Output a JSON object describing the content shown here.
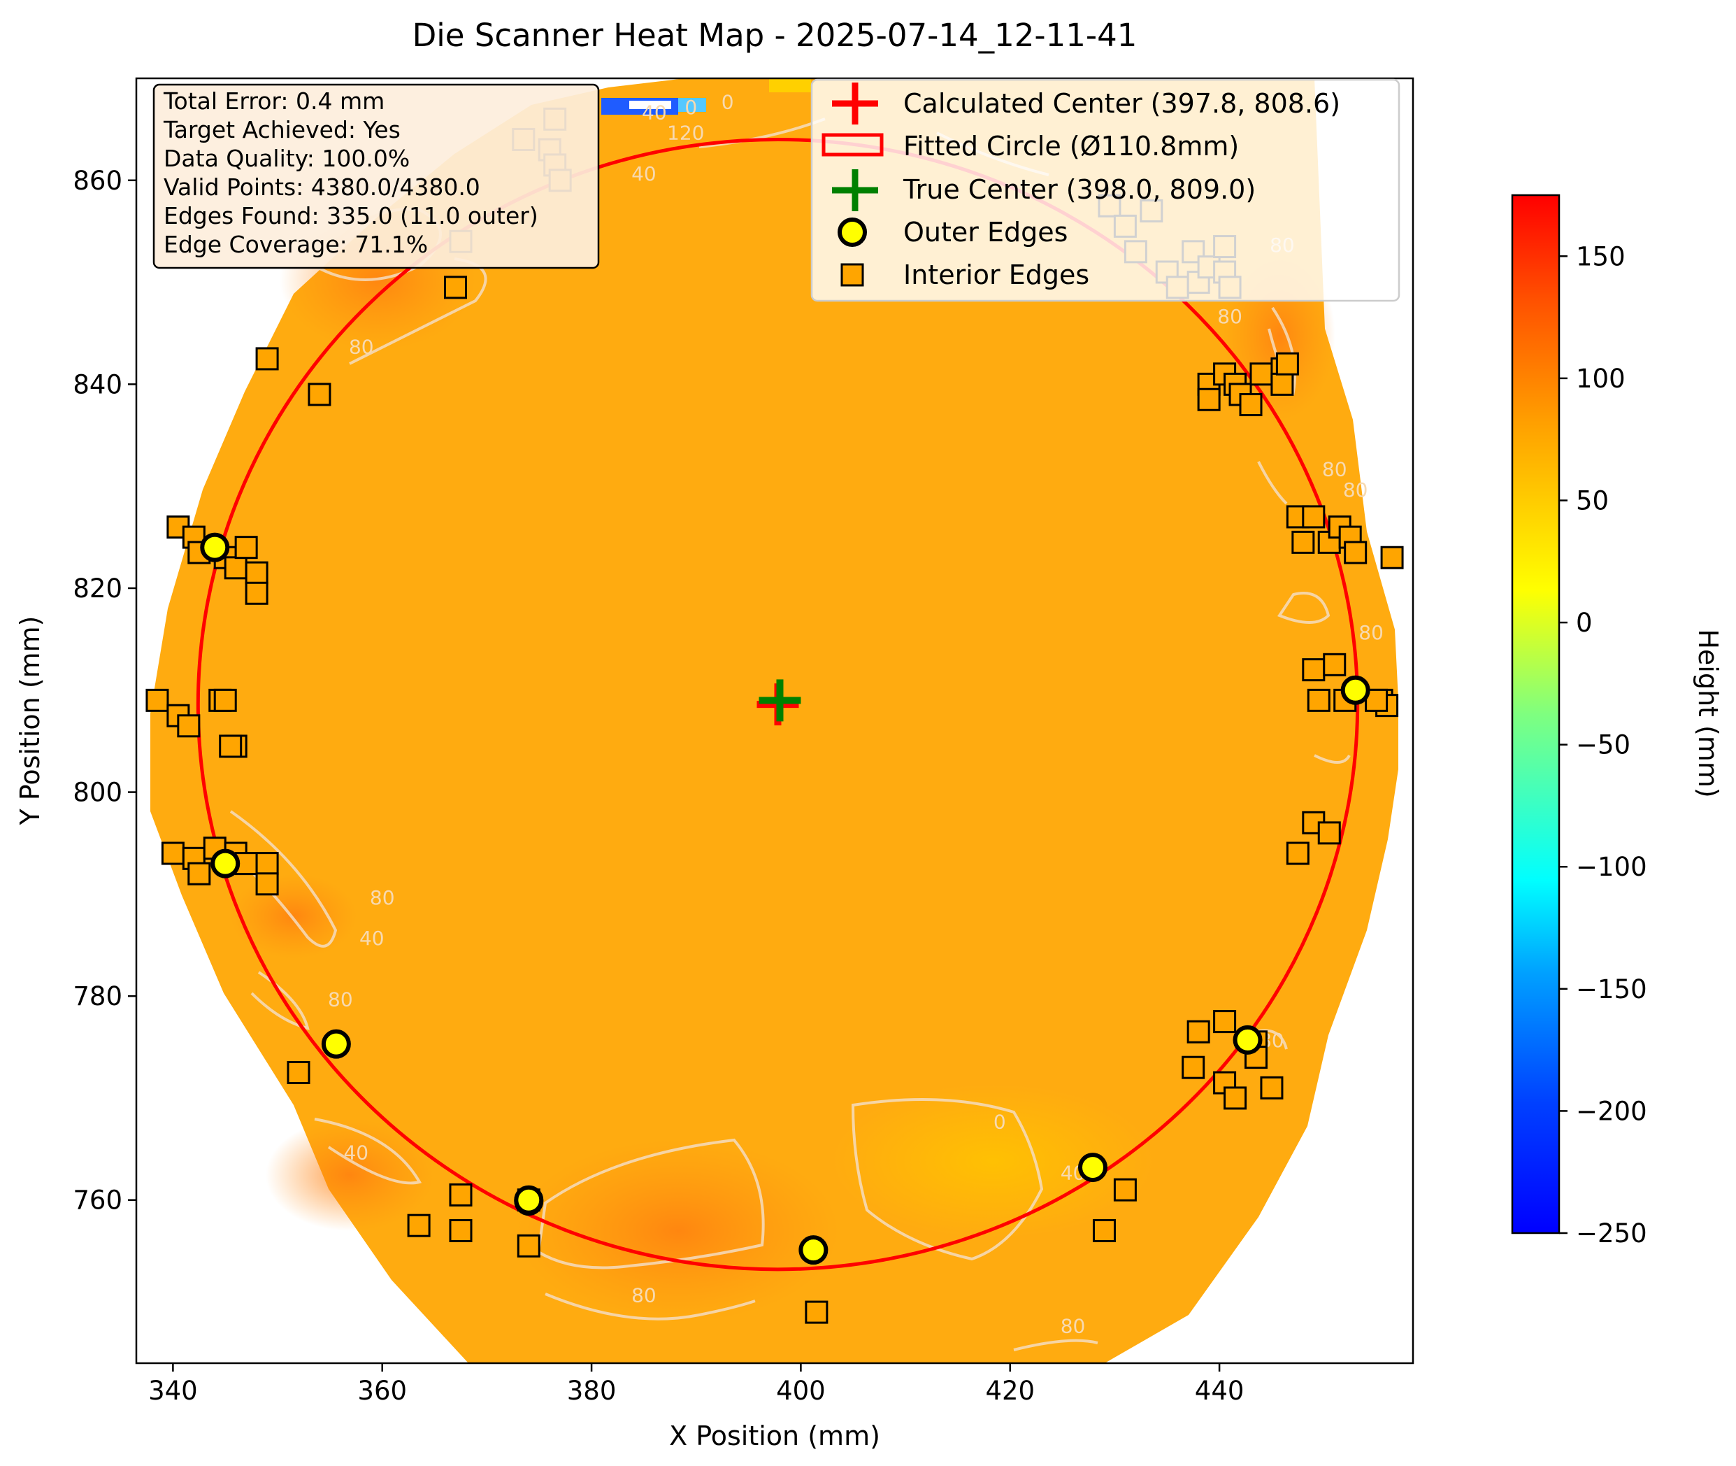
{
  "chart_data": {
    "type": "heatmap",
    "title": "Die Scanner Heat Map - 2025-07-14_12-11-41",
    "xlabel": "X Position (mm)",
    "ylabel": "Y Position (mm)",
    "xlim": [
      336.5,
      458.5
    ],
    "ylim": [
      744,
      870
    ],
    "xticks": [
      340,
      360,
      380,
      400,
      420,
      440
    ],
    "yticks": [
      760,
      780,
      800,
      820,
      840,
      860
    ],
    "colorbar": {
      "label": "Height (mm)",
      "range": [
        -250,
        175
      ],
      "ticks": [
        150,
        100,
        50,
        0,
        -50,
        -100,
        -150,
        -200,
        -250
      ],
      "tick_labels": [
        "150",
        "100",
        "50",
        "0",
        "−50",
        "−100",
        "−150",
        "−200",
        "−250"
      ],
      "colormap": "jet"
    },
    "stats": [
      "Total Error: 0.4 mm",
      "Target Achieved: Yes",
      "Data Quality: 100.0%",
      "Valid Points: 4380.0/4380.0",
      "Edges Found: 335.0 (11.0 outer)",
      "Edge Coverage: 71.1%"
    ],
    "legend": [
      {
        "label": "Calculated Center (397.8, 808.6)",
        "marker": "plus",
        "color": "#ff0000"
      },
      {
        "label": "Fitted Circle (Ø110.8mm)",
        "marker": "rect-outline",
        "color": "#ff0000"
      },
      {
        "label": "True Center (398.0, 809.0)",
        "marker": "plus",
        "color": "#008000"
      },
      {
        "label": "Outer Edges",
        "marker": "circle",
        "color": "#ffff00"
      },
      {
        "label": "Interior Edges",
        "marker": "square",
        "color": "#ffa500"
      }
    ],
    "legend_position": "top-right",
    "calculated_center": {
      "x": 397.8,
      "y": 808.6
    },
    "true_center": {
      "x": 398.0,
      "y": 809.0
    },
    "fitted_circle_diameter_mm": 110.8,
    "contour_labels": [
      {
        "text": "40",
        "x": 386,
        "y": 866
      },
      {
        "text": "40",
        "x": 385,
        "y": 860
      },
      {
        "text": "120",
        "x": 389,
        "y": 864
      },
      {
        "text": "0",
        "x": 389.5,
        "y": 866.5
      },
      {
        "text": "0",
        "x": 393,
        "y": 867
      },
      {
        "text": "80",
        "x": 358,
        "y": 843
      },
      {
        "text": "80",
        "x": 360,
        "y": 789
      },
      {
        "text": "40",
        "x": 359,
        "y": 785
      },
      {
        "text": "80",
        "x": 356,
        "y": 779
      },
      {
        "text": "40",
        "x": 357.5,
        "y": 764
      },
      {
        "text": "80",
        "x": 385,
        "y": 750
      },
      {
        "text": "80",
        "x": 426,
        "y": 747
      },
      {
        "text": "0",
        "x": 419,
        "y": 767
      },
      {
        "text": "40",
        "x": 426,
        "y": 762
      },
      {
        "text": "80",
        "x": 445,
        "y": 775
      },
      {
        "text": "80",
        "x": 454.5,
        "y": 815
      },
      {
        "text": "80",
        "x": 451,
        "y": 831
      },
      {
        "text": "80",
        "x": 441,
        "y": 846
      },
      {
        "text": "80",
        "x": 446,
        "y": 853
      },
      {
        "text": "80",
        "x": 453,
        "y": 829
      }
    ],
    "outer_edges": [
      {
        "x": 355.6,
        "y": 775.3
      },
      {
        "x": 374.0,
        "y": 759.9
      },
      {
        "x": 401.2,
        "y": 755.1
      },
      {
        "x": 427.9,
        "y": 763.2
      },
      {
        "x": 442.7,
        "y": 775.7
      },
      {
        "x": 453.0,
        "y": 810.0
      },
      {
        "x": 344.0,
        "y": 824.0
      },
      {
        "x": 345.0,
        "y": 793.0
      },
      {
        "x": 374.0,
        "y": 760.0
      }
    ],
    "interior_edges": [
      {
        "x": 338.5,
        "y": 809.0
      },
      {
        "x": 340.5,
        "y": 807.5
      },
      {
        "x": 341.5,
        "y": 806.5
      },
      {
        "x": 344.5,
        "y": 809.0
      },
      {
        "x": 345.0,
        "y": 809.0
      },
      {
        "x": 346.0,
        "y": 804.5
      },
      {
        "x": 345.5,
        "y": 804.5
      },
      {
        "x": 340.0,
        "y": 794.0
      },
      {
        "x": 342.0,
        "y": 793.5
      },
      {
        "x": 342.5,
        "y": 792.0
      },
      {
        "x": 344.0,
        "y": 794.5
      },
      {
        "x": 346.0,
        "y": 794.0
      },
      {
        "x": 347.0,
        "y": 793.0
      },
      {
        "x": 349.0,
        "y": 793.0
      },
      {
        "x": 349.0,
        "y": 791.0
      },
      {
        "x": 340.5,
        "y": 826.0
      },
      {
        "x": 342.0,
        "y": 825.0
      },
      {
        "x": 342.5,
        "y": 823.5
      },
      {
        "x": 345.0,
        "y": 823.0
      },
      {
        "x": 346.0,
        "y": 822.0
      },
      {
        "x": 347.0,
        "y": 824.0
      },
      {
        "x": 348.0,
        "y": 821.5
      },
      {
        "x": 348.0,
        "y": 819.5
      },
      {
        "x": 349.0,
        "y": 842.5
      },
      {
        "x": 354.0,
        "y": 839.0
      },
      {
        "x": 367.0,
        "y": 849.5
      },
      {
        "x": 367.5,
        "y": 854.0
      },
      {
        "x": 373.5,
        "y": 864.0
      },
      {
        "x": 376.5,
        "y": 866.0
      },
      {
        "x": 376.0,
        "y": 863.0
      },
      {
        "x": 376.5,
        "y": 861.5
      },
      {
        "x": 377.0,
        "y": 860.0
      },
      {
        "x": 352.0,
        "y": 772.5
      },
      {
        "x": 363.5,
        "y": 757.5
      },
      {
        "x": 367.5,
        "y": 760.5
      },
      {
        "x": 367.5,
        "y": 757.0
      },
      {
        "x": 374.0,
        "y": 760.0
      },
      {
        "x": 374.0,
        "y": 755.5
      },
      {
        "x": 401.5,
        "y": 749.0
      },
      {
        "x": 429.0,
        "y": 757.0
      },
      {
        "x": 431.0,
        "y": 761.0
      },
      {
        "x": 438.0,
        "y": 776.5
      },
      {
        "x": 437.5,
        "y": 773.0
      },
      {
        "x": 440.5,
        "y": 777.5
      },
      {
        "x": 440.5,
        "y": 771.5
      },
      {
        "x": 441.5,
        "y": 770.0
      },
      {
        "x": 443.5,
        "y": 775.5
      },
      {
        "x": 443.5,
        "y": 774.0
      },
      {
        "x": 445.0,
        "y": 771.0
      },
      {
        "x": 447.5,
        "y": 794.0
      },
      {
        "x": 449.0,
        "y": 797.0
      },
      {
        "x": 450.5,
        "y": 796.0
      },
      {
        "x": 449.0,
        "y": 812.0
      },
      {
        "x": 449.5,
        "y": 809.0
      },
      {
        "x": 451.0,
        "y": 812.5
      },
      {
        "x": 452.0,
        "y": 809.0
      },
      {
        "x": 455.5,
        "y": 809.0
      },
      {
        "x": 456.0,
        "y": 808.5
      },
      {
        "x": 455.0,
        "y": 809.0
      },
      {
        "x": 447.5,
        "y": 827.0
      },
      {
        "x": 448.0,
        "y": 824.5
      },
      {
        "x": 449.0,
        "y": 827.0
      },
      {
        "x": 450.5,
        "y": 824.5
      },
      {
        "x": 451.5,
        "y": 826.0
      },
      {
        "x": 452.5,
        "y": 825.0
      },
      {
        "x": 453.0,
        "y": 823.5
      },
      {
        "x": 456.5,
        "y": 823.0
      },
      {
        "x": 439.0,
        "y": 840.0
      },
      {
        "x": 439.0,
        "y": 838.5
      },
      {
        "x": 440.5,
        "y": 841.0
      },
      {
        "x": 441.5,
        "y": 840.0
      },
      {
        "x": 442.0,
        "y": 839.0
      },
      {
        "x": 443.0,
        "y": 838.0
      },
      {
        "x": 444.0,
        "y": 841.0
      },
      {
        "x": 446.0,
        "y": 841.5
      },
      {
        "x": 446.0,
        "y": 840.0
      },
      {
        "x": 446.5,
        "y": 842.0
      },
      {
        "x": 429.5,
        "y": 857.5
      },
      {
        "x": 431.0,
        "y": 855.5
      },
      {
        "x": 432.0,
        "y": 853.0
      },
      {
        "x": 433.5,
        "y": 857.0
      },
      {
        "x": 435.0,
        "y": 851.0
      },
      {
        "x": 436.0,
        "y": 849.5
      },
      {
        "x": 437.5,
        "y": 853.0
      },
      {
        "x": 438.0,
        "y": 850.0
      },
      {
        "x": 439.0,
        "y": 851.5
      },
      {
        "x": 440.5,
        "y": 853.5
      },
      {
        "x": 440.5,
        "y": 851.0
      },
      {
        "x": 441.0,
        "y": 849.5
      }
    ]
  }
}
